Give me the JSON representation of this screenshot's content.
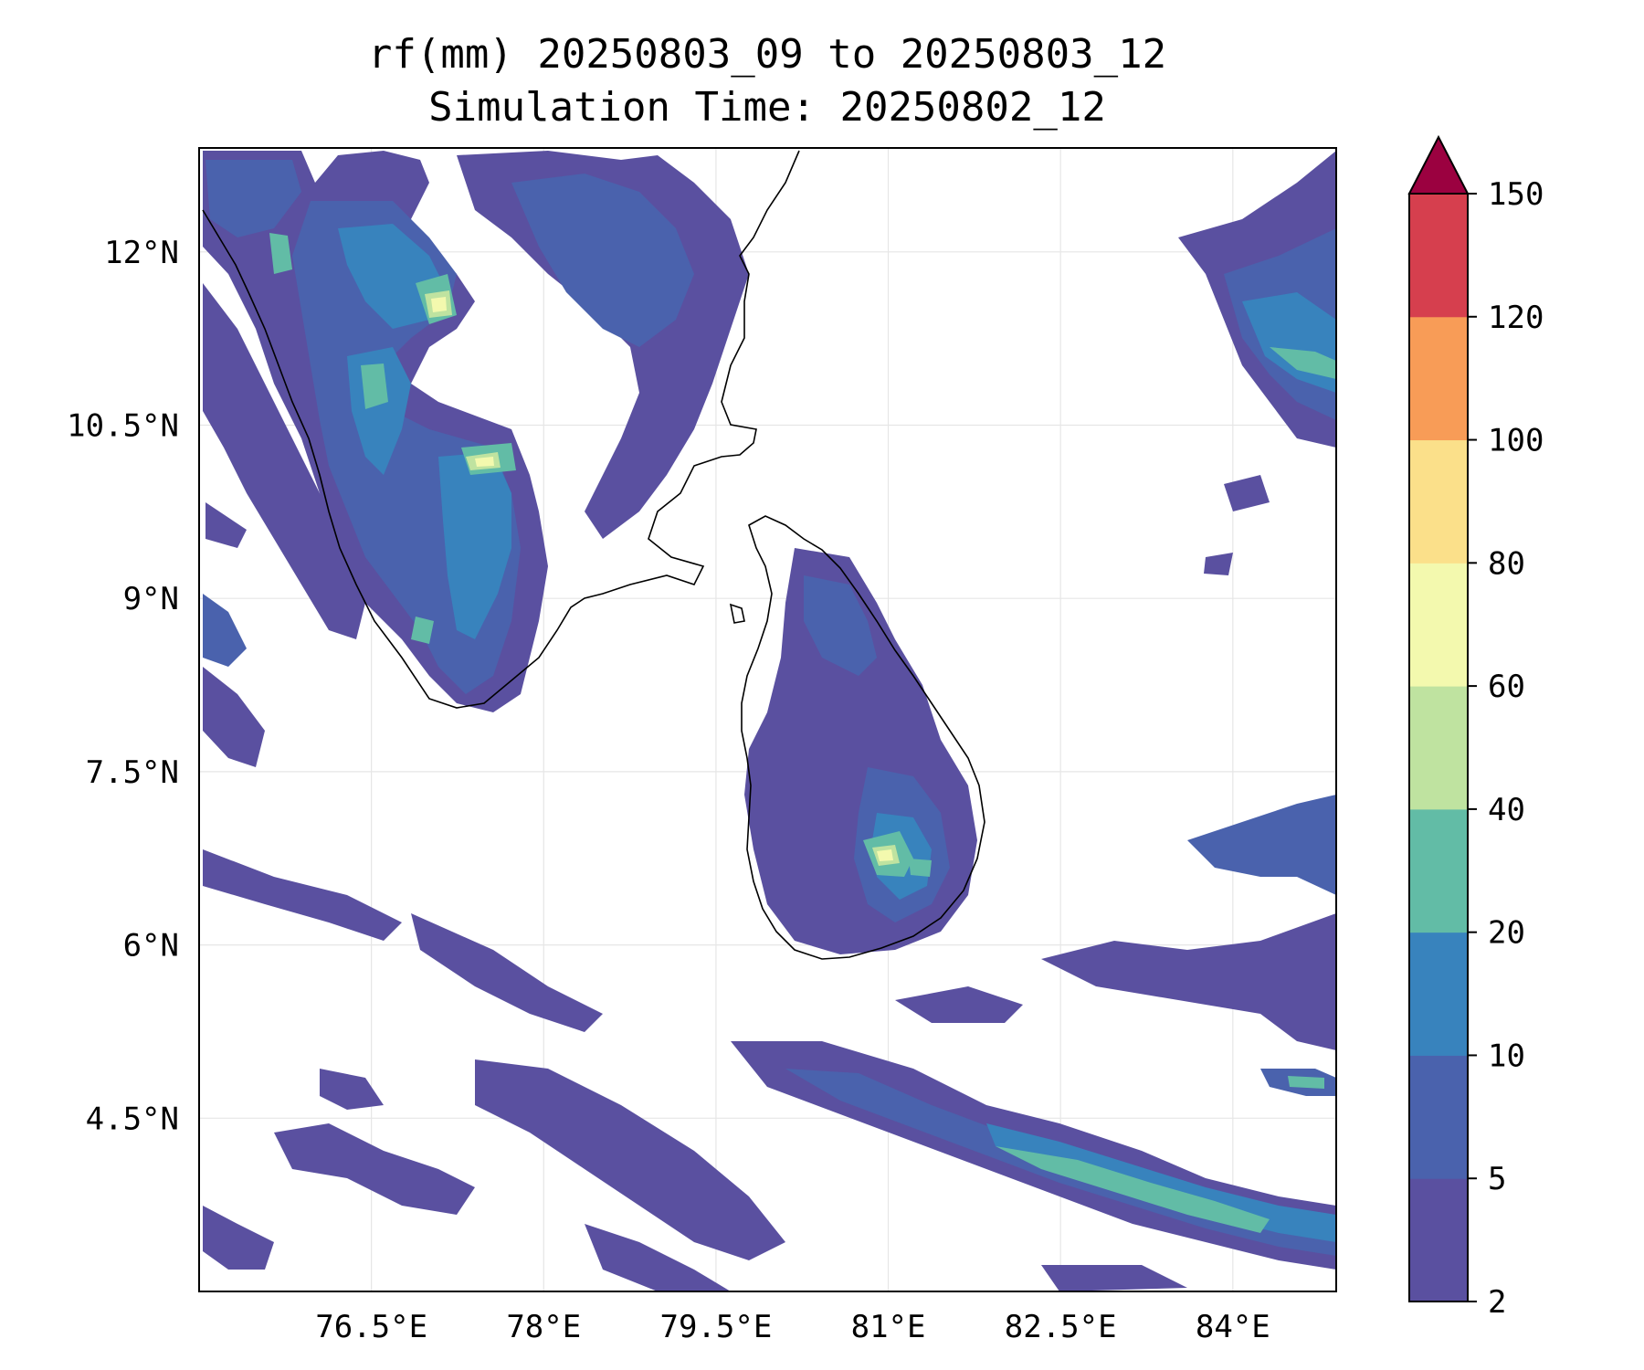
{
  "title_line1": "rf(mm) 20250803_09 to 20250803_12",
  "title_line2": "Simulation Time: 20250802_12",
  "map": {
    "lon_range": [
      75.0,
      84.9
    ],
    "lat_range": [
      3.0,
      12.9
    ],
    "x_ticks": [
      "76.5°E",
      "78°E",
      "79.5°E",
      "81°E",
      "82.5°E",
      "84°E"
    ],
    "x_tick_values": [
      76.5,
      78.0,
      79.5,
      81.0,
      82.5,
      84.0
    ],
    "y_ticks": [
      "12°N",
      "10.5°N",
      "9°N",
      "7.5°N",
      "6°N",
      "4.5°N"
    ],
    "y_tick_values": [
      12.0,
      10.5,
      9.0,
      7.5,
      6.0,
      4.5
    ],
    "gridlines": true
  },
  "colorbar": {
    "levels": [
      "2",
      "5",
      "10",
      "20",
      "40",
      "60",
      "80",
      "100",
      "120",
      "150"
    ],
    "colors": [
      "#5a50a0",
      "#4a62ad",
      "#3883bd",
      "#62bca6",
      "#bfe3a0",
      "#f3f9ae",
      "#fbe08a",
      "#f89c57",
      "#d63f4e"
    ],
    "extend_color": "#9b0140",
    "extend": "max"
  }
}
